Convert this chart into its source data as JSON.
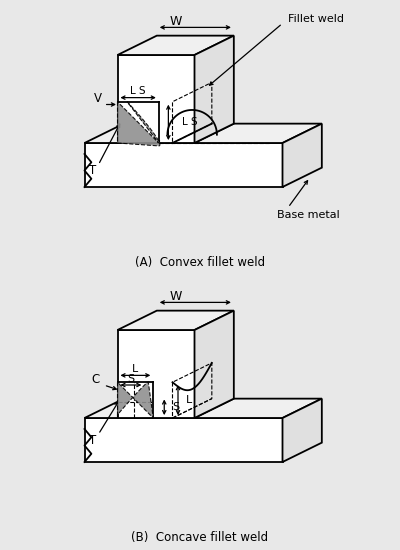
{
  "fig_width": 4.0,
  "fig_height": 5.5,
  "dpi": 100,
  "bg_color": "#e8e8e8",
  "panel_bg": "#ffffff",
  "line_color": "#000000",
  "fill_color": "#888888",
  "label_A": "(A)  Convex fillet weld",
  "label_B": "(B)  Concave fillet weld",
  "label_fillet": "Fillet weld",
  "label_base": "Base metal"
}
